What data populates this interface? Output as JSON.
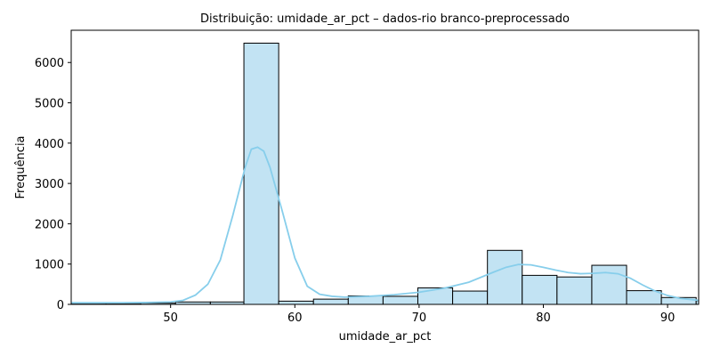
{
  "chart_data": {
    "type": "bar",
    "title": "Distribuição: umidade_ar_pct – dados-rio branco-preprocessado",
    "xlabel": "umidade_ar_pct",
    "ylabel": "Frequência",
    "xlim": [
      42.0,
      92.5
    ],
    "ylim": [
      0,
      6800
    ],
    "xticks": [
      50,
      60,
      70,
      80,
      90
    ],
    "yticks": [
      0,
      1000,
      2000,
      3000,
      4000,
      5000,
      6000
    ],
    "grid": false,
    "bar_color": "#c2e3f3",
    "edge_color": "#000000",
    "kde_color": "#87ceeb",
    "bins": [
      {
        "x0": 42.0,
        "x1": 44.8,
        "count": 25
      },
      {
        "x0": 44.8,
        "x1": 47.6,
        "count": 25
      },
      {
        "x0": 47.6,
        "x1": 50.4,
        "count": 30
      },
      {
        "x0": 50.4,
        "x1": 53.2,
        "count": 60
      },
      {
        "x0": 53.2,
        "x1": 55.9,
        "count": 60
      },
      {
        "x0": 55.9,
        "x1": 58.7,
        "count": 6480
      },
      {
        "x0": 58.7,
        "x1": 61.5,
        "count": 80
      },
      {
        "x0": 61.5,
        "x1": 64.3,
        "count": 130
      },
      {
        "x0": 64.3,
        "x1": 67.1,
        "count": 210
      },
      {
        "x0": 67.1,
        "x1": 69.9,
        "count": 200
      },
      {
        "x0": 69.9,
        "x1": 72.7,
        "count": 410
      },
      {
        "x0": 72.7,
        "x1": 75.5,
        "count": 330
      },
      {
        "x0": 75.5,
        "x1": 78.3,
        "count": 1340
      },
      {
        "x0": 78.3,
        "x1": 81.1,
        "count": 720
      },
      {
        "x0": 81.1,
        "x1": 83.9,
        "count": 680
      },
      {
        "x0": 83.9,
        "x1": 86.7,
        "count": 970
      },
      {
        "x0": 86.7,
        "x1": 89.5,
        "count": 340
      },
      {
        "x0": 89.5,
        "x1": 92.3,
        "count": 170
      },
      {
        "x0": 92.3,
        "x1": 92.5,
        "count": 90
      }
    ],
    "kde": {
      "x": [
        42,
        44,
        46,
        48,
        50,
        51,
        52,
        53,
        54,
        55,
        56,
        56.5,
        57,
        57.5,
        58,
        59,
        60,
        61,
        62,
        63,
        64,
        66,
        68,
        70,
        72,
        74,
        76,
        77,
        78,
        79,
        80,
        81,
        82,
        83,
        84,
        85,
        86,
        87,
        88,
        89,
        90,
        91,
        92.5
      ],
      "y": [
        40,
        40,
        42,
        45,
        60,
        100,
        230,
        500,
        1100,
        2200,
        3400,
        3850,
        3900,
        3800,
        3400,
        2300,
        1150,
        450,
        250,
        200,
        180,
        200,
        240,
        300,
        400,
        550,
        800,
        920,
        990,
        980,
        920,
        850,
        790,
        760,
        770,
        790,
        760,
        650,
        480,
        330,
        220,
        150,
        100
      ]
    }
  }
}
